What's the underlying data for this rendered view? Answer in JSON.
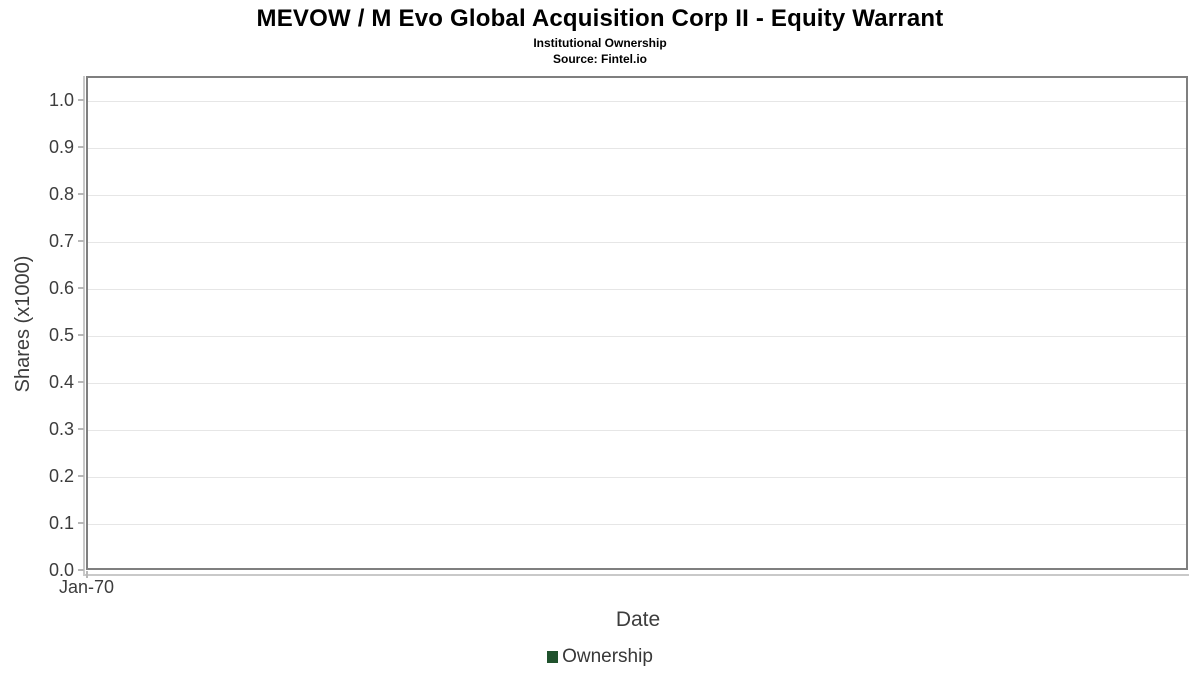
{
  "header": {
    "title": "MEVOW / M Evo Global Acquisition Corp II - Equity Warrant",
    "subtitle": "Institutional Ownership",
    "source": "Source: Fintel.io"
  },
  "chart_data": {
    "type": "line",
    "title": "MEVOW / M Evo Global Acquisition Corp II - Equity Warrant",
    "subtitle": "Institutional Ownership",
    "source": "Source: Fintel.io",
    "xlabel": "Date",
    "ylabel": "Shares (x1000)",
    "x_ticks": [
      "Jan-70"
    ],
    "y_ticks": [
      0.0,
      0.1,
      0.2,
      0.3,
      0.4,
      0.5,
      0.6,
      0.7,
      0.8,
      0.9,
      1.0
    ],
    "y_tick_decimals": 1,
    "ylim": [
      0.0,
      1.05
    ],
    "grid": "horizontal",
    "legend_position": "bottom",
    "series": [
      {
        "name": "Ownership",
        "color": "#20522d",
        "x": [],
        "values": []
      }
    ]
  },
  "legend": {
    "items": [
      {
        "label": "Ownership",
        "color": "#20522d"
      }
    ]
  },
  "colors": {
    "plot_border": "#7f7f7f",
    "gridline": "#e6e6e6",
    "axis_line": "#c9c9c9",
    "tick": "#b8b8b8",
    "tick_label": "#3d3d3d",
    "title": "#000000"
  }
}
